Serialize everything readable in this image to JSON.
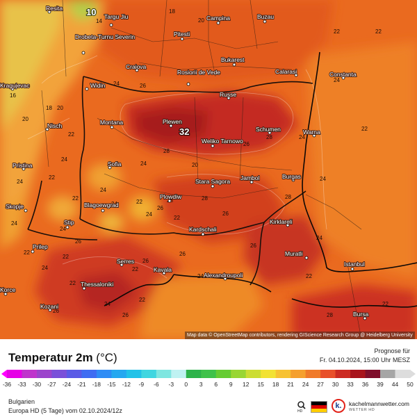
{
  "map": {
    "cities": [
      {
        "name": "Resita"
      },
      {
        "name": "Targu Jiu"
      },
      {
        "name": "Campina"
      },
      {
        "name": "Buzau"
      },
      {
        "name": "Drobeta-Turnu Severin"
      },
      {
        "name": "Pitesti"
      },
      {
        "name": "Craiova"
      },
      {
        "name": "Rosiorii de Vede"
      },
      {
        "name": "Bukarest"
      },
      {
        "name": "Calarasi"
      },
      {
        "name": "Constanta"
      },
      {
        "name": "Kragujevac"
      },
      {
        "name": "Widin"
      },
      {
        "name": "Russe"
      },
      {
        "name": "Montana"
      },
      {
        "name": "Plewen"
      },
      {
        "name": "Schumen"
      },
      {
        "name": "Warna"
      },
      {
        "name": "Nisch"
      },
      {
        "name": "Weliko Tarnowo"
      },
      {
        "name": "Pristina"
      },
      {
        "name": "Sofia"
      },
      {
        "name": "Stara Sagora"
      },
      {
        "name": "Jambol"
      },
      {
        "name": "Burgas"
      },
      {
        "name": "Skopje"
      },
      {
        "name": "Blagoewgrad"
      },
      {
        "name": "Plowdiw"
      },
      {
        "name": "Stip"
      },
      {
        "name": "Kardschali"
      },
      {
        "name": "Kirklareli"
      },
      {
        "name": "Prilep"
      },
      {
        "name": "Serres"
      },
      {
        "name": "Kavala"
      },
      {
        "name": "Muratli"
      },
      {
        "name": "Istanbul"
      },
      {
        "name": "Alexandroupoli"
      },
      {
        "name": "Thessaloniki"
      },
      {
        "name": "Korce"
      },
      {
        "name": "Kozani"
      },
      {
        "name": "Bursa"
      }
    ],
    "temperature_labels": [
      {
        "value": "10"
      },
      {
        "value": "14"
      },
      {
        "value": "16"
      },
      {
        "value": "18"
      },
      {
        "value": "20"
      },
      {
        "value": "22"
      },
      {
        "value": "24"
      },
      {
        "value": "26"
      },
      {
        "value": "28"
      },
      {
        "value": "18"
      },
      {
        "value": "20"
      },
      {
        "value": "22"
      },
      {
        "value": "22"
      },
      {
        "value": "24"
      },
      {
        "value": "22"
      },
      {
        "value": "20"
      },
      {
        "value": "24"
      },
      {
        "value": "24"
      },
      {
        "value": "20"
      },
      {
        "value": "22"
      },
      {
        "value": "26"
      },
      {
        "value": "24"
      },
      {
        "value": "22"
      },
      {
        "value": "26"
      },
      {
        "value": "24"
      },
      {
        "value": "28"
      },
      {
        "value": "28"
      },
      {
        "value": "24"
      },
      {
        "value": "24"
      },
      {
        "value": "26"
      },
      {
        "value": "22"
      },
      {
        "value": "26"
      },
      {
        "value": "22"
      },
      {
        "value": "24"
      },
      {
        "value": "22"
      },
      {
        "value": "24"
      },
      {
        "value": "26"
      },
      {
        "value": "22"
      },
      {
        "value": "26"
      },
      {
        "value": "24"
      },
      {
        "value": "28"
      },
      {
        "value": "22"
      },
      {
        "value": "22"
      },
      {
        "value": "26"
      },
      {
        "value": "22"
      },
      {
        "value": "28"
      },
      {
        "value": "24"
      },
      {
        "value": "24"
      },
      {
        "value": "26"
      },
      {
        "value": "22"
      },
      {
        "value": "24"
      },
      {
        "value": "28"
      },
      {
        "value": "24"
      },
      {
        "value": "22"
      },
      {
        "value": "26"
      },
      {
        "value": "24"
      }
    ],
    "max_label": "32",
    "attribution": "Map data © OpenStreetMap contributors, rendering GIScience Research Group @ Heidelberg University"
  },
  "legend": {
    "title": "Temperatur 2m",
    "unit": "(°C)",
    "forecast_label": "Prognose für",
    "forecast_time": "Fr. 04.10.2024, 15:00 Uhr MESZ",
    "ticks": [
      "-36",
      "-33",
      "-30",
      "-27",
      "-24",
      "-21",
      "-18",
      "-15",
      "-12",
      "-9",
      "-6",
      "-3",
      "0",
      "3",
      "6",
      "9",
      "12",
      "15",
      "18",
      "21",
      "24",
      "27",
      "30",
      "33",
      "36",
      "39",
      "44",
      "50"
    ],
    "tick_colors": [
      "#ff00ff",
      "#e600e6",
      "#bf33cc",
      "#9c44cc",
      "#7a4fd9",
      "#5a5ae6",
      "#3f6cf2",
      "#2f8cf5",
      "#25a8f0",
      "#22c2e8",
      "#3fd6e0",
      "#7fe6e0",
      "#bff2f2",
      "#2db34a",
      "#3fc24a",
      "#66cc33",
      "#99d633",
      "#ccdd33",
      "#f2e233",
      "#f7c233",
      "#f5a02e",
      "#f07a2a",
      "#e8502a",
      "#cc2b22",
      "#a8141c",
      "#7f0f2c",
      "#a6a6a6",
      "#dddddd"
    ],
    "region": "Bulgarien",
    "model": "Europa HD (5 Tage) vom  02.10.2024/12z",
    "brand": "kachelmannwetter.com",
    "brand_sub": "WETTER HD",
    "k_letter": "k.",
    "flag_colors": [
      "#000000",
      "#dd0000",
      "#ffce00"
    ]
  }
}
